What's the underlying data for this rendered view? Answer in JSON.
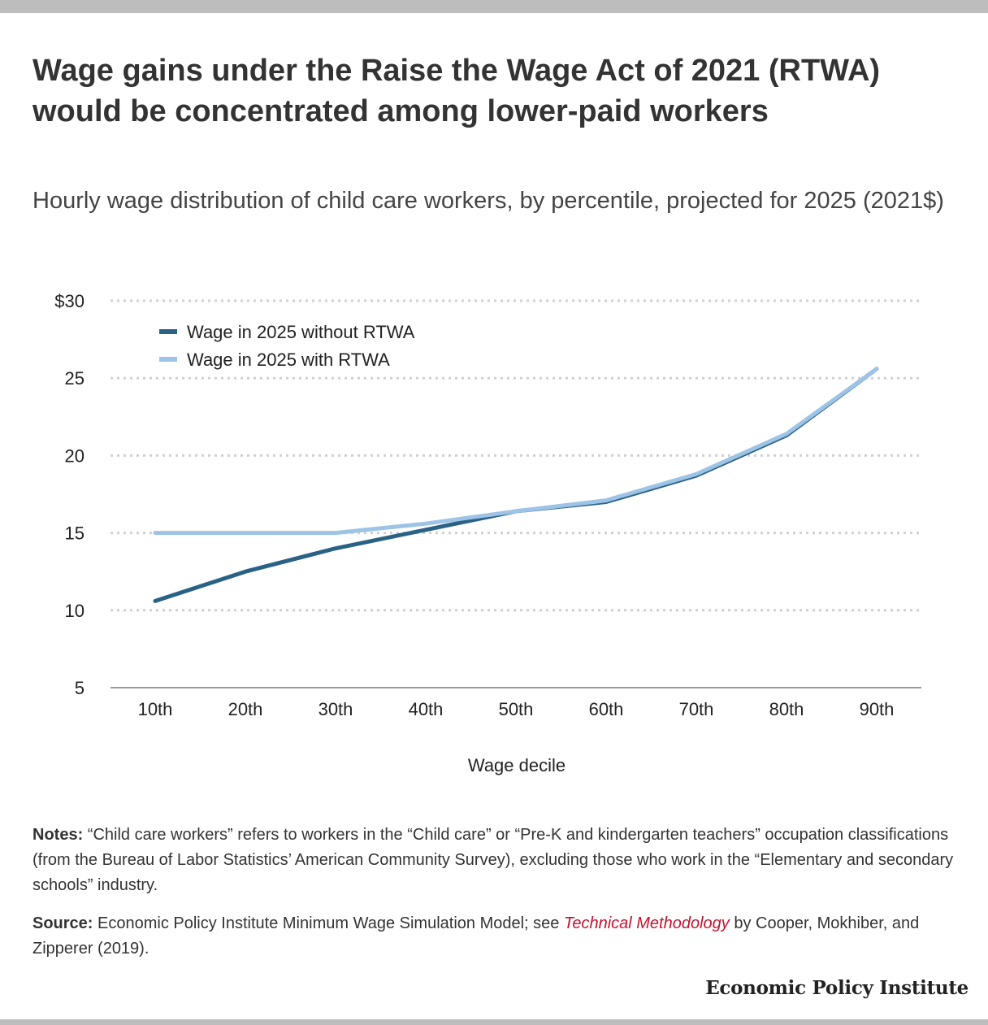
{
  "title": "Wage gains under the Raise the Wage Act of 2021 (RTWA) would be concentrated among lower-paid workers",
  "subtitle": "Hourly wage distribution of child care workers, by percentile, projected for 2025 (2021$)",
  "notes": {
    "label": "Notes:",
    "text": " “Child care workers” refers to workers in the “Child care” or “Pre-K and kindergarten teachers” occupation classifications (from the Bureau of Labor Statistics’ American Community Survey), excluding those who work in the “Elementary and secondary schools” industry."
  },
  "source": {
    "label": "Source:",
    "text_before": " Economic Policy Institute Minimum Wage Simulation Model; see ",
    "link_text": "Technical Methodology",
    "text_after": " by Cooper, Mokhiber, and Zipperer (2019)."
  },
  "brand": "Economic Policy Institute",
  "colors": {
    "without": "#2a6285",
    "with": "#9dc3e6",
    "grid": "#d0d0d0",
    "axis": "#999999",
    "link": "#c8102e"
  },
  "chart_data": {
    "type": "line",
    "categories": [
      "10th",
      "20th",
      "30th",
      "40th",
      "50th",
      "60th",
      "70th",
      "80th",
      "90th"
    ],
    "series": [
      {
        "name": "Wage in 2025 without RTWA",
        "values": [
          10.6,
          12.5,
          14.0,
          15.2,
          16.4,
          17.0,
          18.7,
          21.3,
          25.6
        ]
      },
      {
        "name": "Wage in 2025 with RTWA",
        "values": [
          15.0,
          15.0,
          15.0,
          15.6,
          16.4,
          17.1,
          18.8,
          21.4,
          25.6
        ]
      }
    ],
    "xlabel": "Wage decile",
    "ylabel": "",
    "ylim": [
      5,
      30
    ],
    "yticks": [
      5,
      10,
      15,
      20,
      25,
      30
    ],
    "ytick_labels": [
      "5",
      "10",
      "15",
      "20",
      "25",
      "$30"
    ],
    "grid": true,
    "legend_position": "top-left"
  }
}
